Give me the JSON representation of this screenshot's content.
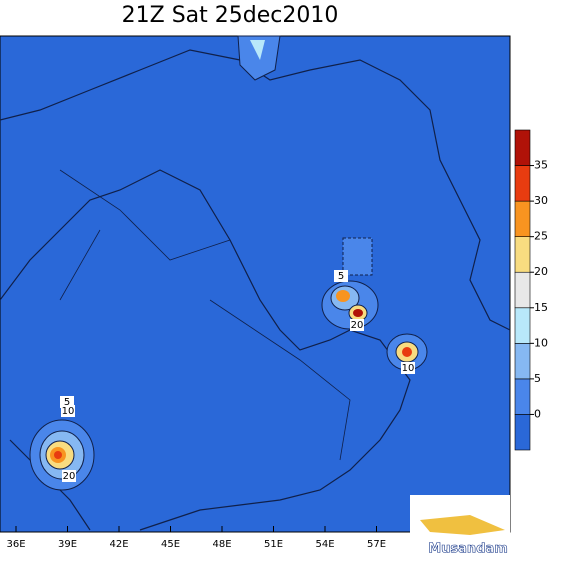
{
  "title": "21Z Sat 25dec2010",
  "map": {
    "x_ticks": [
      "36E",
      "39E",
      "42E",
      "45E",
      "48E",
      "51E",
      "54E",
      "57E"
    ],
    "contour_labels": [
      "5",
      "10",
      "20",
      "5",
      "20",
      "10"
    ]
  },
  "colorbar": {
    "levels": [
      0,
      5,
      10,
      15,
      20,
      25,
      30,
      35
    ],
    "colors": [
      "#2a68d8",
      "#4a86ea",
      "#86b8f2",
      "#b8e8fa",
      "#e8e8e8",
      "#f8dc80",
      "#f89420",
      "#e83c10",
      "#b01208"
    ]
  },
  "logo": {
    "text": "Musandam"
  }
}
